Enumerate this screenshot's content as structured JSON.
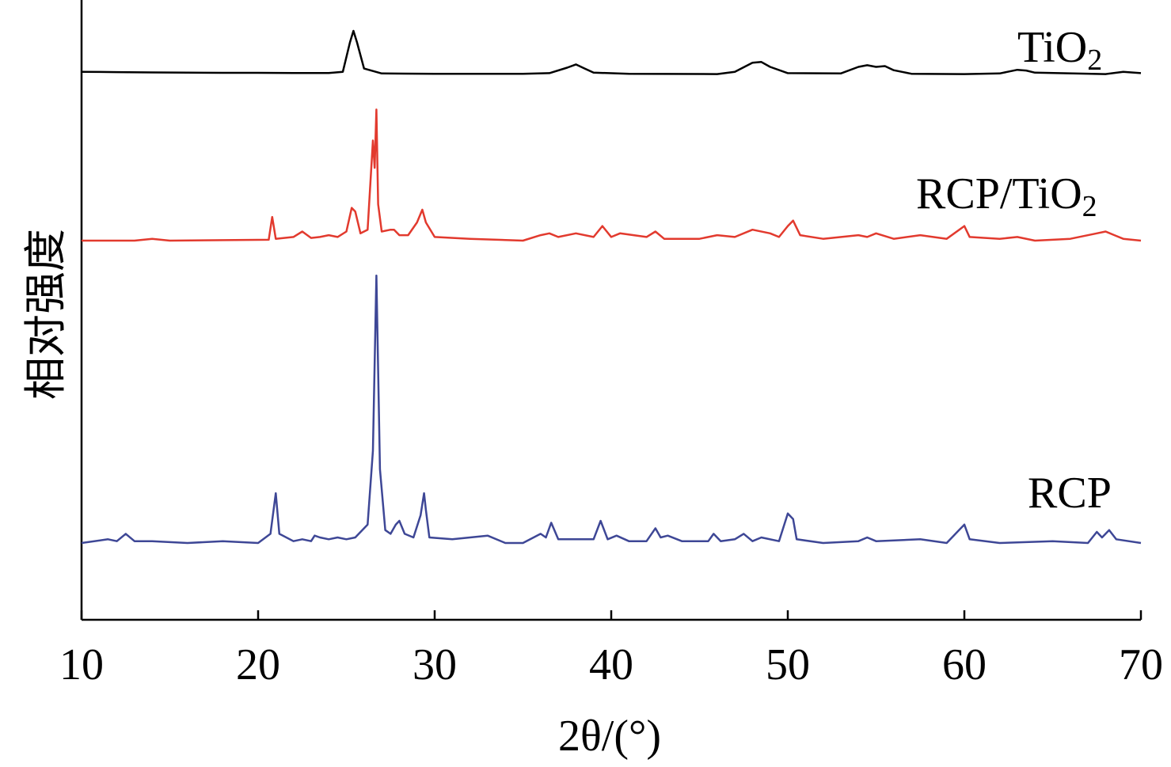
{
  "chart_data": {
    "type": "line",
    "title": "",
    "xlabel": "2θ/(°)",
    "ylabel": "相对强度",
    "xlim": [
      10,
      70
    ],
    "x_ticks": [
      "10",
      "20",
      "30",
      "40",
      "50",
      "60",
      "70"
    ],
    "y_ticks": [],
    "grid": false,
    "legend": "none (series labelled inline at right)",
    "y_units": "relative intensity (a.u., offset)",
    "series": [
      {
        "name": "TiO₂",
        "color": "#000000",
        "points": [
          [
            10,
            0.4
          ],
          [
            12,
            0.38
          ],
          [
            14,
            0.36
          ],
          [
            16,
            0.35
          ],
          [
            18,
            0.34
          ],
          [
            20,
            0.34
          ],
          [
            22,
            0.33
          ],
          [
            24,
            0.33
          ],
          [
            24.8,
            0.4
          ],
          [
            25.2,
            2.2
          ],
          [
            25.4,
            2.9
          ],
          [
            25.6,
            2.2
          ],
          [
            26,
            0.6
          ],
          [
            27,
            0.3
          ],
          [
            30,
            0.28
          ],
          [
            35,
            0.28
          ],
          [
            36.5,
            0.32
          ],
          [
            37.5,
            0.65
          ],
          [
            38,
            0.85
          ],
          [
            38.5,
            0.6
          ],
          [
            39,
            0.35
          ],
          [
            41,
            0.28
          ],
          [
            46,
            0.26
          ],
          [
            47,
            0.4
          ],
          [
            48,
            0.95
          ],
          [
            48.5,
            1.0
          ],
          [
            49,
            0.7
          ],
          [
            50,
            0.32
          ],
          [
            53,
            0.3
          ],
          [
            54,
            0.7
          ],
          [
            54.5,
            0.8
          ],
          [
            55,
            0.7
          ],
          [
            55.5,
            0.75
          ],
          [
            56,
            0.5
          ],
          [
            57,
            0.28
          ],
          [
            60,
            0.26
          ],
          [
            62,
            0.3
          ],
          [
            63,
            0.52
          ],
          [
            63.5,
            0.48
          ],
          [
            64,
            0.35
          ],
          [
            68,
            0.26
          ],
          [
            69,
            0.4
          ],
          [
            70,
            0.32
          ]
        ]
      },
      {
        "name": "RCP/TiO₂",
        "color": "#e23a2e",
        "points": [
          [
            10,
            0
          ],
          [
            13,
            0
          ],
          [
            14,
            0.1
          ],
          [
            15,
            0
          ],
          [
            20.6,
            0.05
          ],
          [
            20.8,
            1.3
          ],
          [
            21,
            0.1
          ],
          [
            22,
            0.2
          ],
          [
            22.5,
            0.5
          ],
          [
            23,
            0.15
          ],
          [
            23.5,
            0.2
          ],
          [
            24,
            0.3
          ],
          [
            24.5,
            0.2
          ],
          [
            25,
            0.5
          ],
          [
            25.3,
            1.8
          ],
          [
            25.5,
            1.6
          ],
          [
            25.8,
            0.4
          ],
          [
            26.2,
            0.6
          ],
          [
            26.5,
            5.5
          ],
          [
            26.6,
            4.0
          ],
          [
            26.7,
            7.2
          ],
          [
            26.8,
            2.0
          ],
          [
            27,
            0.5
          ],
          [
            27.5,
            0.6
          ],
          [
            27.7,
            0.6
          ],
          [
            28,
            0.3
          ],
          [
            28.5,
            0.3
          ],
          [
            29,
            1.0
          ],
          [
            29.3,
            1.7
          ],
          [
            29.5,
            1.0
          ],
          [
            30,
            0.2
          ],
          [
            32,
            0.1
          ],
          [
            35,
            0
          ],
          [
            36,
            0.3
          ],
          [
            36.5,
            0.4
          ],
          [
            37,
            0.2
          ],
          [
            38,
            0.4
          ],
          [
            39,
            0.2
          ],
          [
            39.5,
            0.8
          ],
          [
            40,
            0.2
          ],
          [
            40.5,
            0.4
          ],
          [
            42,
            0.2
          ],
          [
            42.5,
            0.5
          ],
          [
            43,
            0.1
          ],
          [
            45,
            0.1
          ],
          [
            46,
            0.3
          ],
          [
            47,
            0.2
          ],
          [
            48,
            0.6
          ],
          [
            49,
            0.4
          ],
          [
            49.5,
            0.2
          ],
          [
            50,
            0.8
          ],
          [
            50.3,
            1.1
          ],
          [
            50.7,
            0.3
          ],
          [
            52,
            0.1
          ],
          [
            54,
            0.3
          ],
          [
            54.5,
            0.2
          ],
          [
            55,
            0.4
          ],
          [
            56,
            0.1
          ],
          [
            57.5,
            0.3
          ],
          [
            59,
            0.1
          ],
          [
            60,
            0.8
          ],
          [
            60.3,
            0.2
          ],
          [
            62,
            0.1
          ],
          [
            63,
            0.2
          ],
          [
            64,
            0
          ],
          [
            66,
            0.1
          ],
          [
            67.5,
            0.4
          ],
          [
            68,
            0.5
          ],
          [
            68.5,
            0.3
          ],
          [
            69,
            0.1
          ],
          [
            70,
            0
          ]
        ]
      },
      {
        "name": "RCP",
        "color": "#3e4796",
        "points": [
          [
            10,
            0
          ],
          [
            11.5,
            0.2
          ],
          [
            12,
            0.1
          ],
          [
            12.5,
            0.5
          ],
          [
            13,
            0.1
          ],
          [
            14,
            0.1
          ],
          [
            16,
            0
          ],
          [
            18,
            0.1
          ],
          [
            20,
            0
          ],
          [
            20.7,
            0.5
          ],
          [
            21,
            2.7
          ],
          [
            21.2,
            0.5
          ],
          [
            22,
            0.1
          ],
          [
            22.5,
            0.2
          ],
          [
            23,
            0.1
          ],
          [
            23.2,
            0.4
          ],
          [
            23.5,
            0.3
          ],
          [
            24,
            0.2
          ],
          [
            24.5,
            0.3
          ],
          [
            25,
            0.2
          ],
          [
            25.5,
            0.3
          ],
          [
            26.2,
            1.0
          ],
          [
            26.5,
            5.0
          ],
          [
            26.7,
            14.5
          ],
          [
            26.9,
            4.0
          ],
          [
            27.2,
            0.7
          ],
          [
            27.5,
            0.5
          ],
          [
            27.8,
            1.0
          ],
          [
            28,
            1.2
          ],
          [
            28.3,
            0.5
          ],
          [
            28.8,
            0.3
          ],
          [
            29.2,
            1.5
          ],
          [
            29.4,
            2.7
          ],
          [
            29.5,
            1.8
          ],
          [
            29.7,
            0.3
          ],
          [
            31,
            0.2
          ],
          [
            33,
            0.4
          ],
          [
            34,
            0
          ],
          [
            35,
            0
          ],
          [
            36,
            0.5
          ],
          [
            36.3,
            0.3
          ],
          [
            36.6,
            1.1
          ],
          [
            37,
            0.2
          ],
          [
            39,
            0.2
          ],
          [
            39.4,
            1.2
          ],
          [
            39.8,
            0.2
          ],
          [
            40.3,
            0.4
          ],
          [
            41,
            0.1
          ],
          [
            42,
            0.1
          ],
          [
            42.5,
            0.8
          ],
          [
            42.8,
            0.3
          ],
          [
            43.2,
            0.4
          ],
          [
            44,
            0.1
          ],
          [
            45.5,
            0.1
          ],
          [
            45.8,
            0.5
          ],
          [
            46.2,
            0.1
          ],
          [
            47,
            0.2
          ],
          [
            47.5,
            0.5
          ],
          [
            48,
            0.1
          ],
          [
            48.5,
            0.3
          ],
          [
            49.5,
            0.1
          ],
          [
            50,
            1.6
          ],
          [
            50.3,
            1.3
          ],
          [
            50.5,
            0.2
          ],
          [
            52,
            0
          ],
          [
            54,
            0.1
          ],
          [
            54.5,
            0.3
          ],
          [
            55,
            0.1
          ],
          [
            57.5,
            0.2
          ],
          [
            59,
            0
          ],
          [
            59.8,
            0.8
          ],
          [
            60,
            1.0
          ],
          [
            60.3,
            0.2
          ],
          [
            62,
            0
          ],
          [
            65,
            0.1
          ],
          [
            67,
            0
          ],
          [
            67.5,
            0.6
          ],
          [
            67.8,
            0.3
          ],
          [
            68.2,
            0.7
          ],
          [
            68.6,
            0.2
          ],
          [
            70,
            0
          ]
        ]
      }
    ]
  },
  "labels": {
    "tio2_main": "TiO",
    "tio2_sub": "2",
    "rcp_tio2_main": "RCP/TiO",
    "rcp_tio2_sub": "2",
    "rcp": "RCP"
  }
}
